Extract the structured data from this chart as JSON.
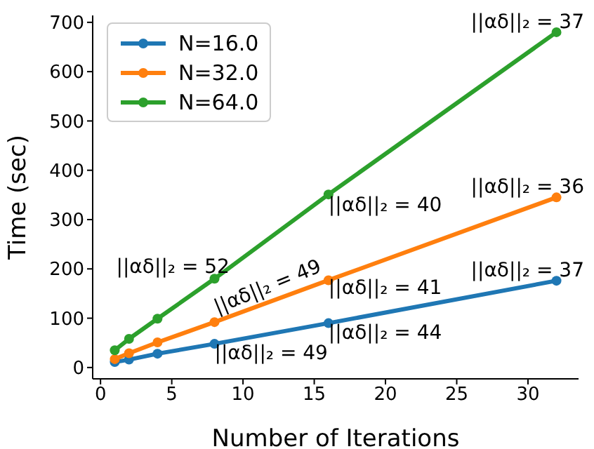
{
  "chart_data": {
    "type": "line",
    "xlabel": "Number of Iterations",
    "ylabel": "Time (sec)",
    "x": [
      1,
      2,
      4,
      8,
      16,
      32
    ],
    "series": [
      {
        "name": "N=16.0",
        "color": "#1f77b4",
        "values": [
          11,
          16,
          28,
          48,
          90,
          176
        ]
      },
      {
        "name": "N=32.0",
        "color": "#ff7f0e",
        "values": [
          17,
          29,
          51,
          92,
          177,
          345
        ]
      },
      {
        "name": "N=64.0",
        "color": "#2ca02c",
        "values": [
          35,
          58,
          99,
          180,
          351,
          680
        ]
      }
    ],
    "xlim": [
      -0.55,
      33.55
    ],
    "xticks": [
      0,
      5,
      10,
      15,
      20,
      25,
      30
    ],
    "ylim": [
      -23,
      714
    ],
    "yticks": [
      0,
      100,
      200,
      300,
      400,
      500,
      600,
      700
    ],
    "grid": false,
    "legend": "top left",
    "marker": "circle",
    "line_style": "solid",
    "annotations": [
      {
        "text": "||αδ||₂ = 52",
        "x": 8,
        "y": 180
      },
      {
        "text": "||αδ||₂ = 49",
        "x": 8,
        "y": 92
      },
      {
        "text": "||αδ||₂ = 49",
        "x": 8,
        "y": 48
      },
      {
        "text": "||αδ||₂ = 40",
        "x": 16,
        "y": 351
      },
      {
        "text": "||αδ||₂ = 41",
        "x": 16,
        "y": 177
      },
      {
        "text": "||αδ||₂ = 44",
        "x": 16,
        "y": 90
      },
      {
        "text": "||αδ||₂ = 37",
        "x": 32,
        "y": 680
      },
      {
        "text": "||αδ||₂ = 36",
        "x": 32,
        "y": 345
      },
      {
        "text": "||αδ||₂ = 37",
        "x": 32,
        "y": 176
      }
    ]
  }
}
